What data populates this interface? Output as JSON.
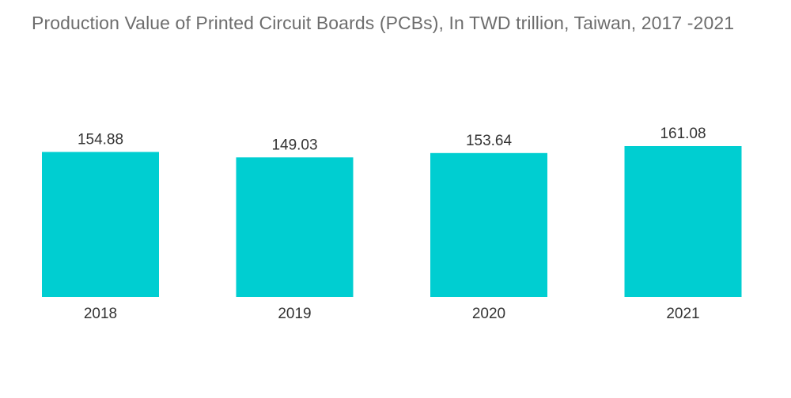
{
  "title": "Production Value of Printed Circuit Boards (PCBs), In TWD trillion, Taiwan, 2017 -2021",
  "colors": {
    "bar": "#00ced1",
    "title": "#6d6d6d",
    "label": "#333333"
  },
  "chart_data": {
    "type": "bar",
    "title": "Production Value of Printed Circuit Boards (PCBs), In TWD trillion, Taiwan, 2017 -2021",
    "categories": [
      "2018",
      "2019",
      "2020",
      "2021"
    ],
    "values": [
      154.88,
      149.03,
      153.64,
      161.08
    ],
    "data_labels": [
      "154.88",
      "149.03",
      "153.64",
      "161.08"
    ],
    "xlabel": "",
    "ylabel": "",
    "ylim": [
      0,
      161.08
    ],
    "grid": false,
    "legend": "none"
  }
}
